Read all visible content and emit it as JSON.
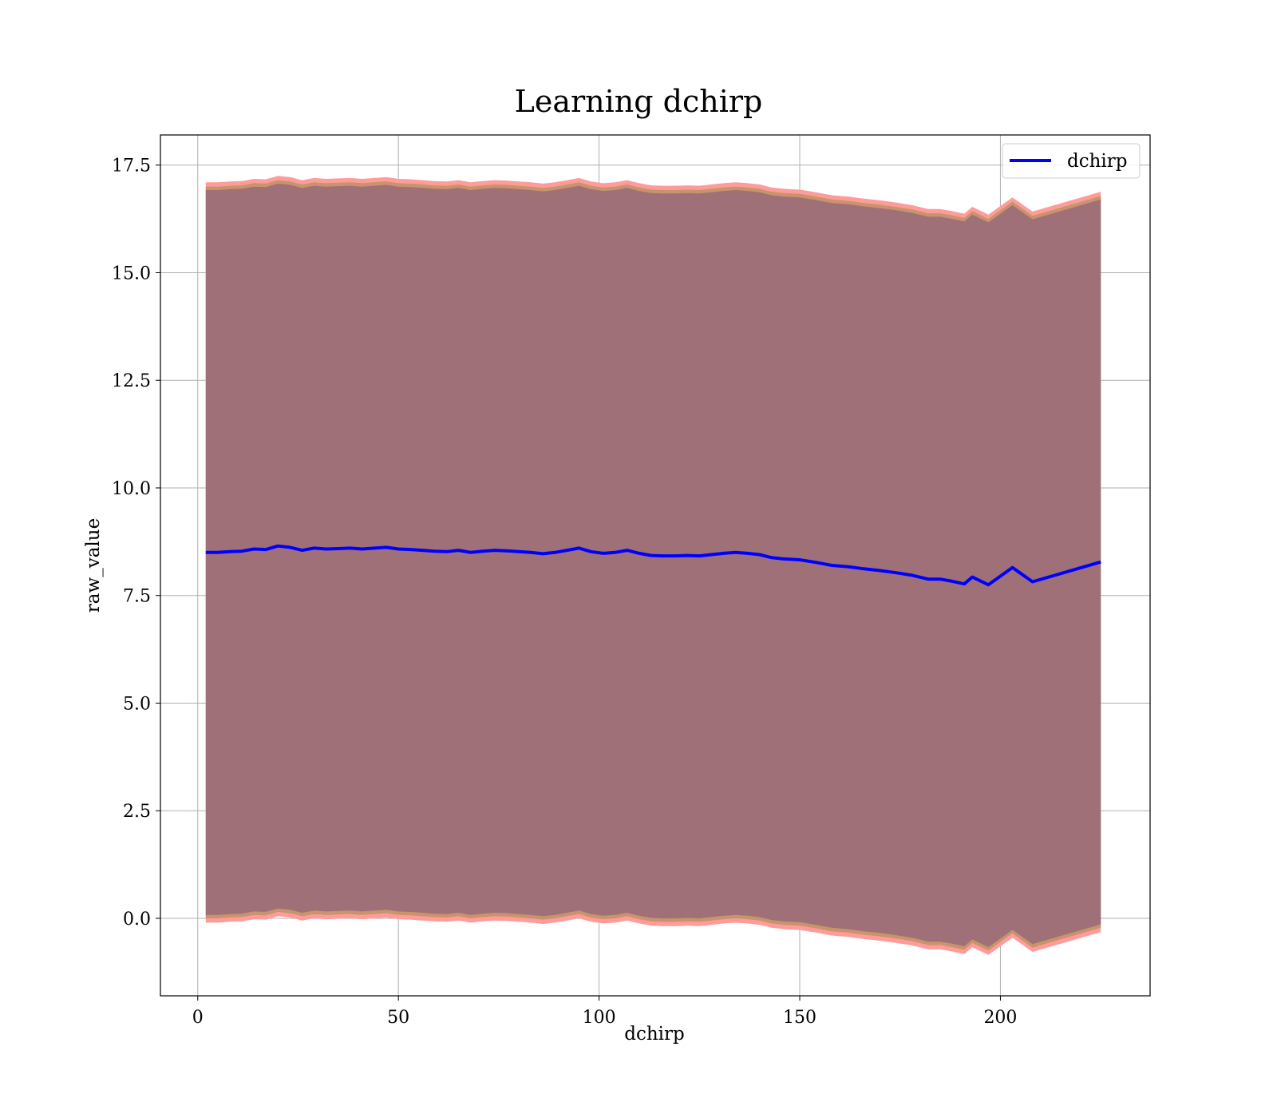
{
  "chart_data": {
    "type": "area",
    "title": "Learning dchirp",
    "xlabel": "dchirp",
    "ylabel": "raw_value",
    "xlim": [
      -9.3,
      237.3
    ],
    "ylim": [
      -1.8,
      18.2
    ],
    "xticks": [
      0,
      50,
      100,
      150,
      200
    ],
    "xtick_labels": [
      "0",
      "50",
      "100",
      "150",
      "200"
    ],
    "yticks": [
      0.0,
      2.5,
      5.0,
      7.5,
      10.0,
      12.5,
      15.0,
      17.5
    ],
    "ytick_labels": [
      "0.0",
      "2.5",
      "5.0",
      "7.5",
      "10.0",
      "12.5",
      "15.0",
      "17.5"
    ],
    "grid": true,
    "legend": {
      "position": "upper-right",
      "entries": [
        "dchirp"
      ]
    },
    "colors": {
      "line": "#0000ff",
      "band_outer": "#ff9b9b",
      "band_mid": "#c8946a",
      "band_inner": "#a07078",
      "frame": "#000000",
      "grid": "#b0b0b0"
    },
    "x": [
      2,
      5,
      8,
      11,
      14,
      17,
      20,
      23,
      26,
      29,
      32,
      35,
      38,
      41,
      44,
      47,
      50,
      53,
      56,
      59,
      62,
      65,
      68,
      71,
      74,
      77,
      80,
      83,
      86,
      89,
      92,
      95,
      98,
      101,
      104,
      107,
      110,
      113,
      116,
      119,
      122,
      125,
      128,
      131,
      134,
      137,
      140,
      143,
      146,
      150,
      154,
      158,
      162,
      166,
      170,
      174,
      178,
      182,
      185,
      188,
      191,
      193,
      197,
      203,
      208,
      225
    ],
    "series": [
      {
        "name": "dchirp",
        "values": [
          8.5,
          8.5,
          8.52,
          8.53,
          8.58,
          8.57,
          8.65,
          8.62,
          8.55,
          8.6,
          8.58,
          8.59,
          8.6,
          8.58,
          8.6,
          8.62,
          8.58,
          8.57,
          8.55,
          8.53,
          8.52,
          8.55,
          8.5,
          8.53,
          8.55,
          8.54,
          8.52,
          8.5,
          8.47,
          8.5,
          8.55,
          8.6,
          8.52,
          8.48,
          8.5,
          8.55,
          8.48,
          8.43,
          8.42,
          8.42,
          8.43,
          8.42,
          8.45,
          8.48,
          8.5,
          8.48,
          8.45,
          8.38,
          8.35,
          8.33,
          8.27,
          8.2,
          8.17,
          8.12,
          8.08,
          8.03,
          7.97,
          7.88,
          7.88,
          7.83,
          7.77,
          7.93,
          7.75,
          8.15,
          7.82,
          8.28
        ]
      }
    ],
    "band_offsets": {
      "outer": 8.6,
      "mid": 8.5,
      "inner": 8.42
    }
  }
}
